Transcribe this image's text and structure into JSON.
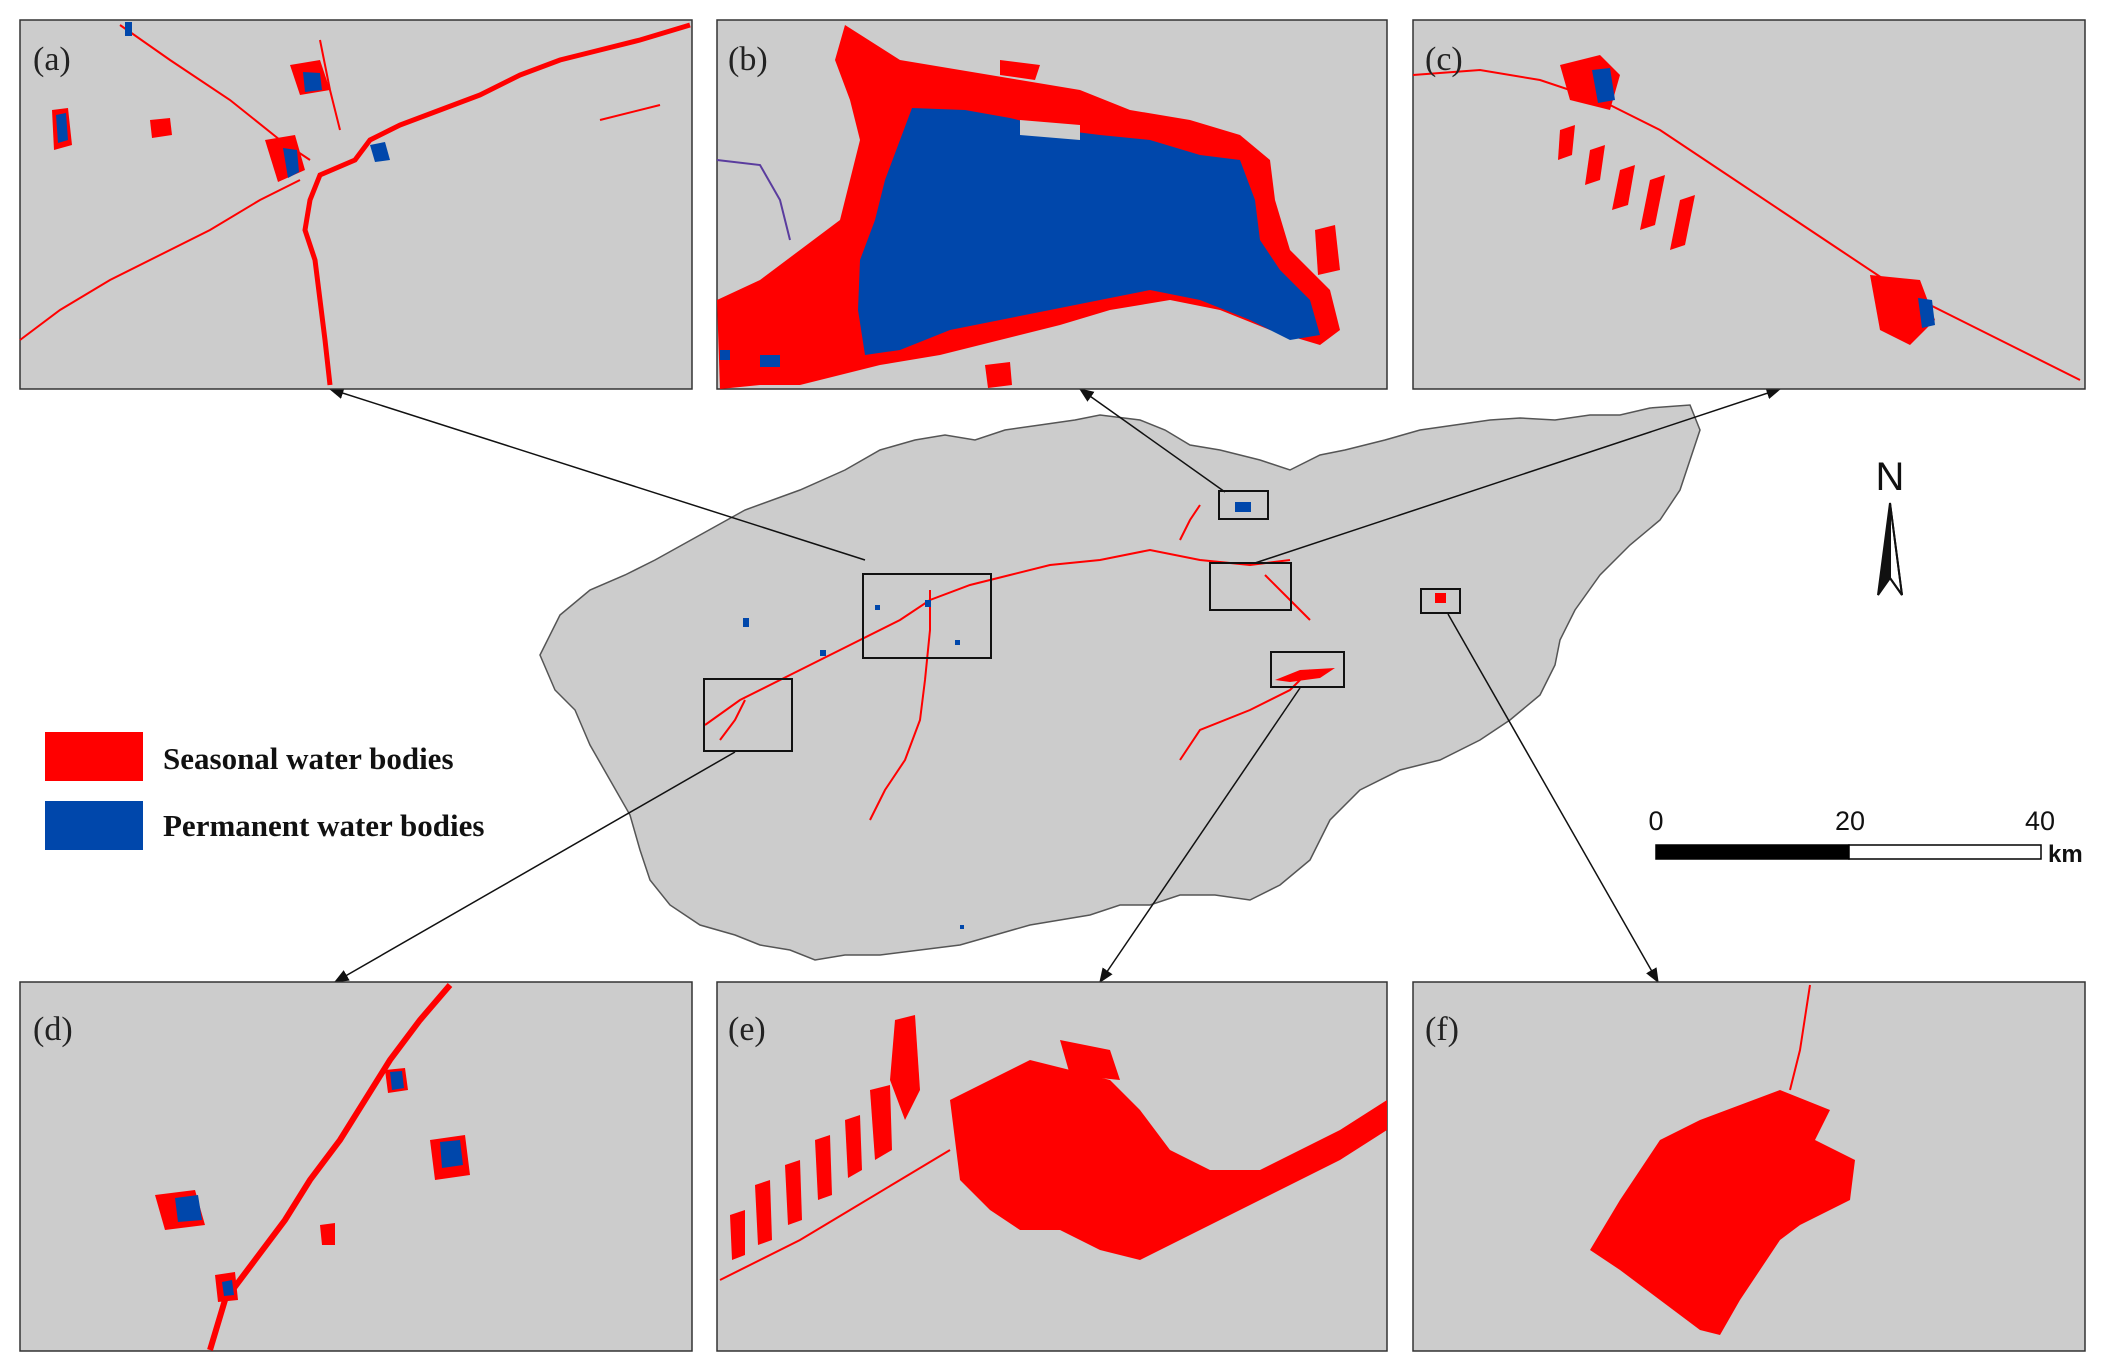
{
  "colors": {
    "background": "#ffffff",
    "map_fill": "#cccccc",
    "seasonal": "#ff0000",
    "permanent": "#0047ab",
    "outline": "#333333"
  },
  "panels": {
    "a": {
      "label": "(a)"
    },
    "b": {
      "label": "(b)"
    },
    "c": {
      "label": "(c)"
    },
    "d": {
      "label": "(d)"
    },
    "e": {
      "label": "(e)"
    },
    "f": {
      "label": "(f)"
    }
  },
  "legend": {
    "items": [
      {
        "label": "Seasonal water bodies",
        "color": "#ff0000"
      },
      {
        "label": "Permanent water bodies",
        "color": "#0047ab"
      }
    ]
  },
  "scale_bar": {
    "ticks": [
      "0",
      "20",
      "40"
    ],
    "unit": "km"
  },
  "north_arrow": {
    "label": "N",
    "icon": "north-arrow-icon"
  }
}
